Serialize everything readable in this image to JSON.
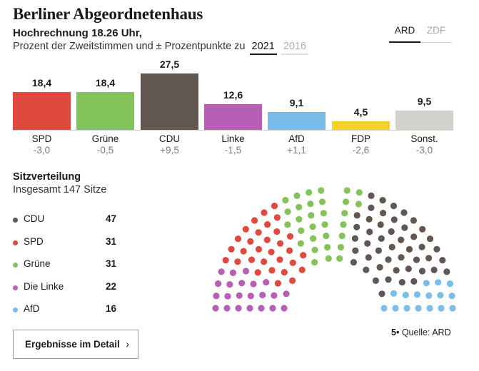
{
  "header": {
    "title": "Berliner Abgeordnetenhaus",
    "subtitle": "Hochrechnung 18.26 Uhr,",
    "description": "Prozent der Zweitstimmen und ± Prozentpunkte zu",
    "year_selected": "2021",
    "year_other": "2016"
  },
  "source_tabs": {
    "ard": "ARD",
    "zdf": "ZDF"
  },
  "chart_data": {
    "type": "bar",
    "categories": [
      "SPD",
      "Grüne",
      "CDU",
      "Linke",
      "AfD",
      "FDP",
      "Sonst."
    ],
    "values": [
      18.4,
      18.4,
      27.5,
      12.6,
      9.1,
      4.5,
      9.5
    ],
    "value_labels": [
      "18,4",
      "18,4",
      "27,5",
      "12,6",
      "9,1",
      "4,5",
      "9,5"
    ],
    "diff_labels": [
      "-3,0",
      "-0,5",
      "+9,5",
      "-1,5",
      "+1,1",
      "-2,6",
      "-3,0"
    ],
    "colors": [
      "#de4b3e",
      "#83c45a",
      "#615650",
      "#b660b5",
      "#79bde8",
      "#f5d12a",
      "#d3d1cb"
    ],
    "ylim": [
      0,
      27.5
    ]
  },
  "seats": {
    "title": "Sitzverteilung",
    "total_label": "Insgesamt 147 Sitze",
    "legend": [
      {
        "name": "CDU",
        "count": "47",
        "color": "#615650"
      },
      {
        "name": "SPD",
        "count": "31",
        "color": "#de4b3e"
      },
      {
        "name": "Grüne",
        "count": "31",
        "color": "#83c45a"
      },
      {
        "name": "Die Linke",
        "count": "22",
        "color": "#b660b5"
      },
      {
        "name": "AfD",
        "count": "16",
        "color": "#79bde8"
      }
    ],
    "hemicycle_order": [
      {
        "name": "Die Linke",
        "seats": 22,
        "color": "#b660b5"
      },
      {
        "name": "SPD",
        "seats": 31,
        "color": "#de4b3e"
      },
      {
        "name": "Grüne",
        "seats": 31,
        "color": "#83c45a"
      },
      {
        "name": "CDU",
        "seats": 47,
        "color": "#615650"
      },
      {
        "name": "AfD",
        "seats": 16,
        "color": "#79bde8"
      }
    ]
  },
  "footer": {
    "button_label": "Ergebnisse im Detail",
    "button_icon": "chevron-right-icon",
    "source_logo": "5•",
    "source_text": "Quelle: ARD"
  }
}
